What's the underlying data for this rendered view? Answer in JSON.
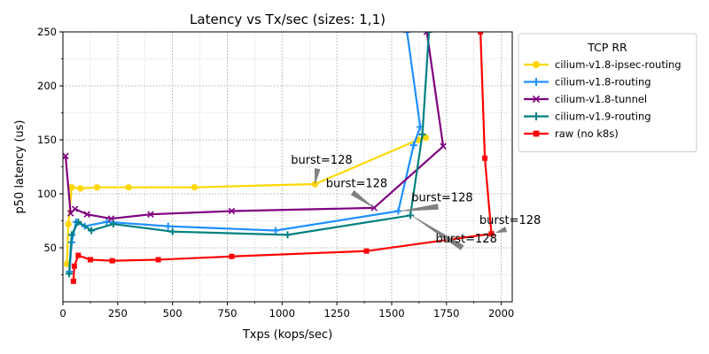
{
  "chart_data": {
    "type": "line",
    "title": "Latency vs Tx/sec (sizes: 1,1)",
    "xlabel": "Txps (kops/sec)",
    "ylabel": "p50 latency (us)",
    "xlim": [
      0,
      2050
    ],
    "ylim": [
      0,
      250
    ],
    "xticks": [
      0,
      250,
      500,
      750,
      1000,
      1250,
      1500,
      1750,
      2000
    ],
    "yticks": [
      50,
      100,
      150,
      200,
      250
    ],
    "grid": "dotted",
    "legend": {
      "title": "TCP RR",
      "placement": "upper-right outside"
    },
    "series": [
      {
        "name": "cilium-v1.8-ipsec-routing",
        "color": "#ffd700",
        "marker": "circle",
        "x": [
          18,
          25,
          40,
          80,
          155,
          300,
          600,
          1150,
          1620,
          1655
        ],
        "y": [
          35,
          72,
          106,
          105,
          106,
          106,
          106,
          109,
          150,
          152
        ]
      },
      {
        "name": "cilium-v1.8-routing",
        "color": "#1e90ff",
        "marker": "plus",
        "x": [
          30,
          40,
          60,
          100,
          200,
          480,
          970,
          1530,
          1600,
          1630,
          1570
        ],
        "y": [
          28,
          55,
          74,
          70,
          74,
          70,
          66,
          84,
          145,
          162,
          250
        ]
      },
      {
        "name": "cilium-v1.8-tunnel",
        "color": "#800080",
        "marker": "x",
        "x": [
          12,
          35,
          55,
          110,
          220,
          400,
          770,
          1420,
          1735,
          1660
        ],
        "y": [
          135,
          82,
          86,
          81,
          77,
          81,
          84,
          87,
          144,
          250
        ]
      },
      {
        "name": "cilium-v1.9-routing",
        "color": "#008080",
        "marker": "plus",
        "x": [
          28,
          40,
          70,
          130,
          230,
          500,
          1025,
          1585,
          1640,
          1670
        ],
        "y": [
          26,
          62,
          74,
          66,
          72,
          65,
          62,
          80,
          155,
          250
        ]
      },
      {
        "name": "raw (no k8s)",
        "color": "#ff0000",
        "marker": "square",
        "x": [
          48,
          52,
          70,
          125,
          225,
          435,
          770,
          1385,
          1955,
          1925,
          1905
        ],
        "y": [
          19,
          33,
          43,
          39,
          38,
          39,
          42,
          47,
          63,
          133,
          250
        ]
      }
    ],
    "annotations": [
      {
        "text": "burst=128",
        "text_xy": [
          1040,
          128
        ],
        "point_xy": [
          1150,
          109
        ]
      },
      {
        "text": "burst=128",
        "text_xy": [
          1200,
          106
        ],
        "point_xy": [
          1420,
          87
        ]
      },
      {
        "text": "burst=128",
        "text_xy": [
          1590,
          93
        ],
        "point_xy": [
          1540,
          84
        ]
      },
      {
        "text": "burst=128",
        "text_xy": [
          1900,
          72
        ],
        "point_xy": [
          1975,
          64
        ]
      },
      {
        "text": "burst=128",
        "text_xy": [
          1700,
          55
        ],
        "point_xy": [
          1590,
          80
        ]
      }
    ]
  }
}
